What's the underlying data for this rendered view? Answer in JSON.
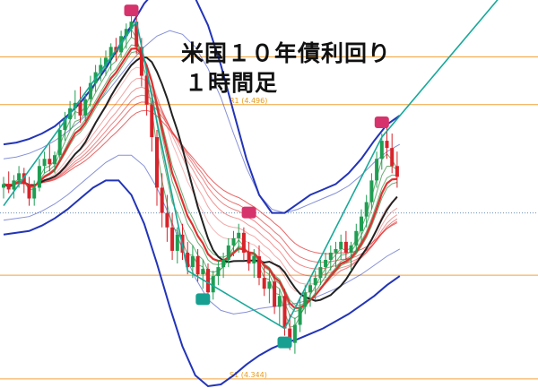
{
  "title": {
    "line1": "米国１０年債利回り",
    "line2": "１時間足"
  },
  "chart_data": {
    "type": "candlestick",
    "title": "米国１０年債利回り １時間足",
    "pivots": [
      {
        "name": "R1",
        "label": "R1 (4.496)",
        "value": 4.496
      },
      {
        "name": "S1",
        "label": "S1 (4.344)",
        "value": 4.344
      }
    ],
    "ylim": [
      4.339,
      4.554
    ],
    "colors": {
      "up": "#1f9e52",
      "down": "#d8232a",
      "bollinger": "#2234b8",
      "pivot": "#f2a23a",
      "trendline": "#18a89a",
      "sell_marker": "#d6336c",
      "buy_marker": "#17a091",
      "ma_black": "#222222",
      "ma_red": "#e03030",
      "ma_green": "#2f8a3c"
    },
    "candles": [
      [
        4.45,
        4.456,
        4.444,
        4.452
      ],
      [
        4.452,
        4.459,
        4.447,
        4.449
      ],
      [
        4.449,
        4.457,
        4.444,
        4.454
      ],
      [
        4.454,
        4.462,
        4.45,
        4.458
      ],
      [
        4.458,
        4.461,
        4.447,
        4.452
      ],
      [
        4.452,
        4.456,
        4.44,
        4.444
      ],
      [
        4.444,
        4.454,
        4.44,
        4.45
      ],
      [
        4.45,
        4.466,
        4.448,
        4.462
      ],
      [
        4.462,
        4.47,
        4.458,
        4.466
      ],
      [
        4.466,
        4.474,
        4.459,
        4.463
      ],
      [
        4.463,
        4.47,
        4.458,
        4.468
      ],
      [
        4.468,
        4.486,
        4.465,
        4.482
      ],
      [
        4.482,
        4.492,
        4.476,
        4.488
      ],
      [
        4.488,
        4.498,
        4.482,
        4.494
      ],
      [
        4.494,
        4.504,
        4.488,
        4.497
      ],
      [
        4.497,
        4.506,
        4.486,
        4.49
      ],
      [
        4.49,
        4.502,
        4.487,
        4.499
      ],
      [
        4.499,
        4.512,
        4.495,
        4.508
      ],
      [
        4.508,
        4.518,
        4.503,
        4.514
      ],
      [
        4.514,
        4.522,
        4.509,
        4.518
      ],
      [
        4.518,
        4.526,
        4.512,
        4.522
      ],
      [
        4.522,
        4.53,
        4.515,
        4.528
      ],
      [
        4.528,
        4.533,
        4.52,
        4.525
      ],
      [
        4.525,
        4.537,
        4.522,
        4.534
      ],
      [
        4.534,
        4.541,
        4.527,
        4.538
      ],
      [
        4.538,
        4.546,
        4.533,
        4.542
      ],
      [
        4.542,
        4.545,
        4.524,
        4.528
      ],
      [
        4.528,
        4.533,
        4.506,
        4.512
      ],
      [
        4.512,
        4.518,
        4.49,
        4.496
      ],
      [
        4.496,
        4.5,
        4.47,
        4.478
      ],
      [
        4.478,
        4.482,
        4.44,
        4.45
      ],
      [
        4.45,
        4.458,
        4.428,
        4.436
      ],
      [
        4.436,
        4.446,
        4.42,
        4.428
      ],
      [
        4.428,
        4.436,
        4.41,
        4.415
      ],
      [
        4.415,
        4.428,
        4.408,
        4.424
      ],
      [
        4.424,
        4.43,
        4.41,
        4.414
      ],
      [
        4.414,
        4.42,
        4.402,
        4.406
      ],
      [
        4.406,
        4.418,
        4.4,
        4.412
      ],
      [
        4.412,
        4.416,
        4.398,
        4.402
      ],
      [
        4.402,
        4.41,
        4.394,
        4.405
      ],
      [
        4.405,
        4.408,
        4.388,
        4.392
      ],
      [
        4.392,
        4.404,
        4.388,
        4.401
      ],
      [
        4.401,
        4.41,
        4.396,
        4.406
      ],
      [
        4.406,
        4.414,
        4.4,
        4.41
      ],
      [
        4.41,
        4.422,
        4.406,
        4.418
      ],
      [
        4.418,
        4.426,
        4.412,
        4.422
      ],
      [
        4.422,
        4.43,
        4.414,
        4.425
      ],
      [
        4.425,
        4.428,
        4.41,
        4.414
      ],
      [
        4.414,
        4.42,
        4.404,
        4.408
      ],
      [
        4.408,
        4.416,
        4.4,
        4.412
      ],
      [
        4.412,
        4.418,
        4.396,
        4.4
      ],
      [
        4.4,
        4.406,
        4.39,
        4.394
      ],
      [
        4.394,
        4.404,
        4.386,
        4.398
      ],
      [
        4.398,
        4.402,
        4.38,
        4.384
      ],
      [
        4.384,
        4.394,
        4.374,
        4.39
      ],
      [
        4.39,
        4.394,
        4.368,
        4.372
      ],
      [
        4.372,
        4.38,
        4.36,
        4.364
      ],
      [
        4.364,
        4.378,
        4.358,
        4.374
      ],
      [
        4.374,
        4.388,
        4.37,
        4.384
      ],
      [
        4.384,
        4.396,
        4.38,
        4.392
      ],
      [
        4.392,
        4.4,
        4.384,
        4.396
      ],
      [
        4.396,
        4.404,
        4.388,
        4.4
      ],
      [
        4.4,
        4.41,
        4.396,
        4.406
      ],
      [
        4.406,
        4.414,
        4.4,
        4.41
      ],
      [
        4.41,
        4.418,
        4.404,
        4.414
      ],
      [
        4.414,
        4.42,
        4.406,
        4.416
      ],
      [
        4.416,
        4.424,
        4.41,
        4.42
      ],
      [
        4.42,
        4.426,
        4.41,
        4.414
      ],
      [
        4.414,
        4.42,
        4.404,
        4.418
      ],
      [
        4.418,
        4.43,
        4.414,
        4.426
      ],
      [
        4.426,
        4.438,
        4.42,
        4.434
      ],
      [
        4.434,
        4.446,
        4.428,
        4.442
      ],
      [
        4.442,
        4.458,
        4.438,
        4.454
      ],
      [
        4.454,
        4.47,
        4.45,
        4.466
      ],
      [
        4.466,
        4.48,
        4.46,
        4.476
      ],
      [
        4.476,
        4.485,
        4.466,
        4.472
      ],
      [
        4.472,
        4.48,
        4.458,
        4.462
      ],
      [
        4.462,
        4.47,
        4.45,
        4.456
      ]
    ],
    "bands": {
      "upper_outer": [
        4.474,
        4.475,
        4.477,
        4.48,
        4.484,
        4.49,
        4.497,
        4.506,
        4.516,
        4.528,
        4.54,
        4.552,
        4.56,
        4.564,
        4.563,
        4.555,
        4.54,
        4.518,
        4.492,
        4.466,
        4.446,
        4.436,
        4.436,
        4.441,
        4.446,
        4.449,
        4.452,
        4.458,
        4.466,
        4.476,
        4.485,
        4.49
      ],
      "upper_inner": [
        4.466,
        4.467,
        4.469,
        4.472,
        4.476,
        4.481,
        4.487,
        4.494,
        4.502,
        4.511,
        4.52,
        4.528,
        4.534,
        4.537,
        4.535,
        4.528,
        4.516,
        4.5,
        4.48,
        4.461,
        4.446,
        4.438,
        4.436,
        4.438,
        4.441,
        4.444,
        4.447,
        4.451,
        4.457,
        4.464,
        4.47,
        4.474
      ],
      "lower_inner": [
        4.432,
        4.433,
        4.434,
        4.437,
        4.441,
        4.446,
        4.452,
        4.458,
        4.464,
        4.468,
        4.468,
        4.462,
        4.45,
        4.434,
        4.416,
        4.4,
        4.388,
        4.382,
        4.38,
        4.381,
        4.383,
        4.384,
        4.385,
        4.386,
        4.388,
        4.391,
        4.394,
        4.398,
        4.402,
        4.407,
        4.412,
        4.416
      ],
      "lower_outer": [
        4.424,
        4.425,
        4.426,
        4.429,
        4.433,
        4.438,
        4.444,
        4.45,
        4.454,
        4.454,
        4.446,
        4.43,
        4.408,
        4.384,
        4.362,
        4.346,
        4.34,
        4.341,
        4.346,
        4.352,
        4.357,
        4.361,
        4.364,
        4.366,
        4.369,
        4.372,
        4.376,
        4.38,
        4.385,
        4.39,
        4.396,
        4.401
      ],
      "x_start": 0,
      "x_step": 2.5
    },
    "trendlines": [
      {
        "from": [
          0,
          4.44
        ],
        "to": [
          26,
          4.542
        ]
      },
      {
        "from": [
          26,
          4.542
        ],
        "to": [
          36,
          4.404
        ]
      },
      {
        "from": [
          36,
          4.404
        ],
        "to": [
          55,
          4.372
        ]
      },
      {
        "from": [
          55,
          4.372
        ],
        "to": [
          74,
          4.478
        ]
      },
      {
        "from": [
          74,
          4.478
        ],
        "to": [
          99,
          4.562
        ]
      }
    ],
    "markers": [
      {
        "type": "sell",
        "index": 25,
        "value": 4.548
      },
      {
        "type": "sell",
        "index": 48,
        "value": 4.436
      },
      {
        "type": "sell",
        "index": 74,
        "value": 4.486
      },
      {
        "type": "buy",
        "index": 39,
        "value": 4.388
      },
      {
        "type": "buy",
        "index": 55,
        "value": 4.364
      }
    ]
  }
}
